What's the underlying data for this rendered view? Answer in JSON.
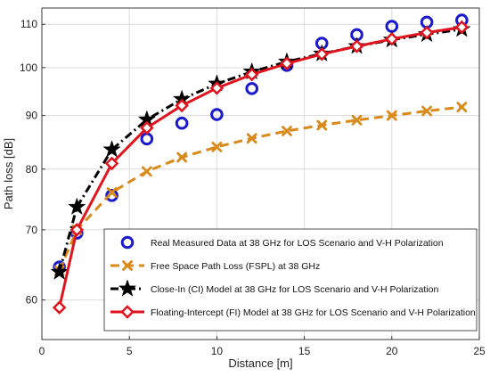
{
  "chart_data": {
    "type": "line",
    "xlabel": "Distance [m]",
    "ylabel": "Path loss [dB]",
    "xlim": [
      0,
      25
    ],
    "ylim": [
      55,
      114
    ],
    "y_scale": "log",
    "grid": true,
    "legend_position": "lower-right",
    "x_ticks": [
      0,
      5,
      10,
      15,
      20,
      25
    ],
    "y_ticks": [
      60,
      70,
      80,
      90,
      100,
      110
    ],
    "series": [
      {
        "name": "Real Measured Data at 38 GHz for LOS Scenario and V-H Polarization",
        "style": "markers",
        "marker": "circle",
        "color": "#1a1acc",
        "x": [
          1,
          2,
          4,
          6,
          8,
          10,
          12,
          14,
          16,
          18,
          20,
          22,
          24
        ],
        "y": [
          64.5,
          69.5,
          75.5,
          85.5,
          88.5,
          90.2,
          95.5,
          100.5,
          105.5,
          107.5,
          109.5,
          110.5,
          111.0
        ]
      },
      {
        "name": "Free Space Path Loss (FSPL) at 38 GHz",
        "style": "dashed",
        "marker": "x",
        "color": "#d98a1a",
        "x": [
          1,
          2,
          4,
          6,
          8,
          10,
          12,
          14,
          16,
          18,
          20,
          22,
          24
        ],
        "y": [
          64.0,
          70.0,
          76.0,
          79.6,
          82.1,
          84.0,
          85.6,
          87.0,
          88.1,
          89.1,
          90.0,
          90.9,
          91.7
        ]
      },
      {
        "name": "Close-In (CI) Model at 38 GHz for LOS Scenario and V-H Polarization",
        "style": "dashdot",
        "marker": "star",
        "color": "#000000",
        "x": [
          1,
          2,
          4,
          6,
          8,
          10,
          12,
          14,
          16,
          18,
          20,
          22,
          24
        ],
        "y": [
          63.8,
          73.6,
          83.5,
          89.2,
          93.3,
          96.5,
          99.1,
          101.3,
          103.1,
          104.8,
          106.3,
          107.6,
          108.8
        ]
      },
      {
        "name": "Floating-Intercept (FI) Model at 38 GHz for LOS Scenario and V-H Polarization",
        "style": "solid",
        "marker": "diamond",
        "color": "#e0141e",
        "x": [
          1,
          2,
          4,
          6,
          8,
          10,
          12,
          14,
          16,
          18,
          20,
          22,
          24
        ],
        "y": [
          59.0,
          70.0,
          81.0,
          87.6,
          92.0,
          95.6,
          98.5,
          100.9,
          103.0,
          104.8,
          106.5,
          108.0,
          109.3
        ]
      }
    ]
  }
}
